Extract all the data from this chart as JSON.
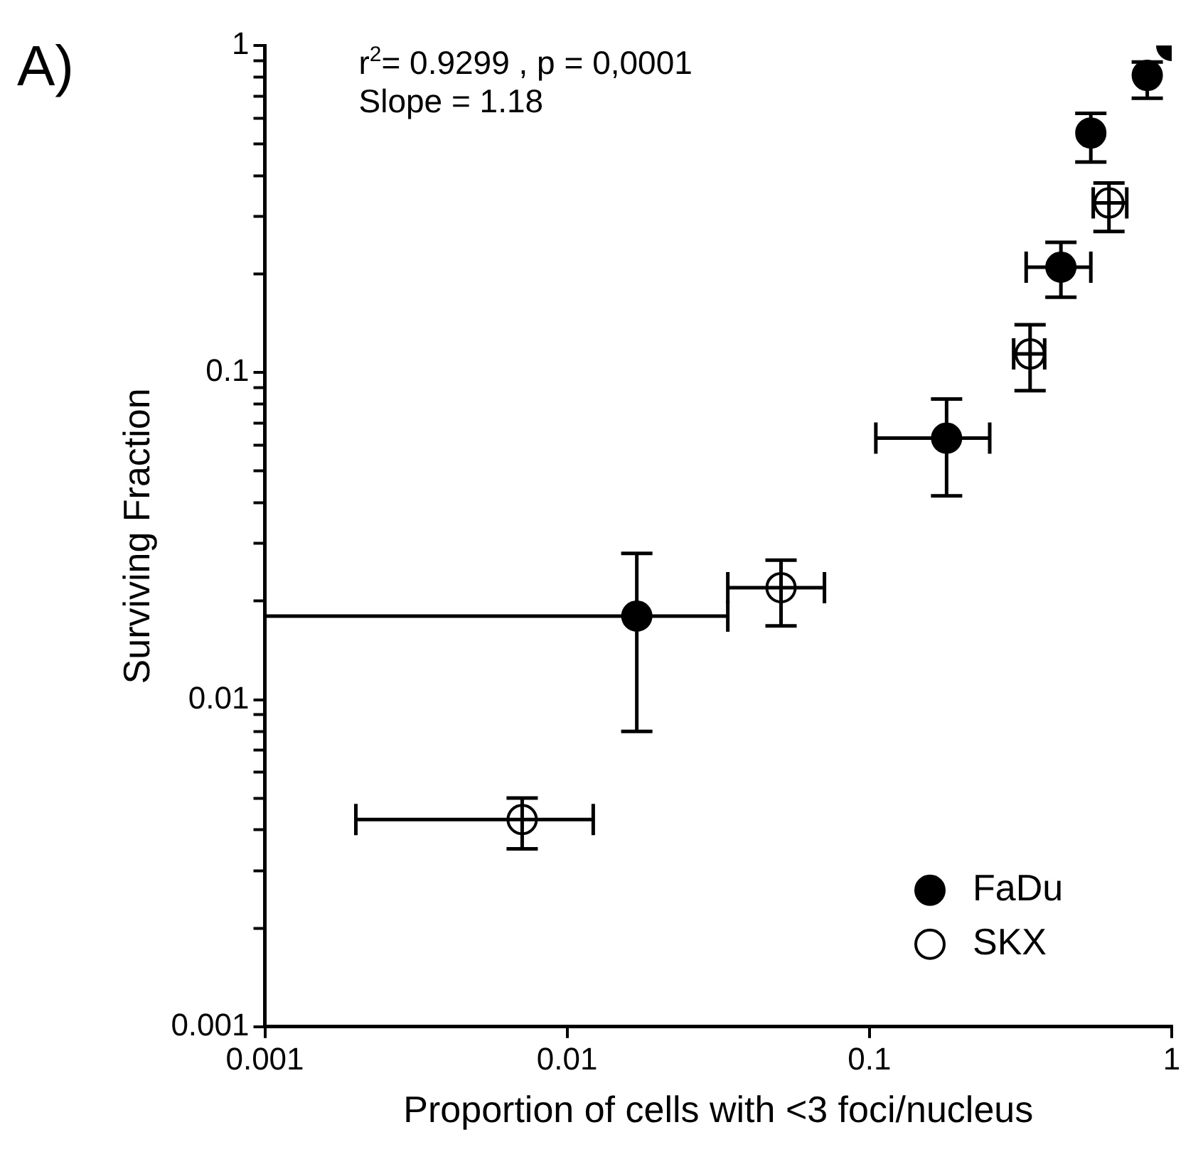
{
  "chart_data": {
    "type": "scatter",
    "title": "A)",
    "xlabel": "Proportion of cells with <3 foci/nucleus",
    "ylabel": "Surviving Fraction",
    "annotations": [
      "r$^{2}$= 0.9299 , p = 0,0001",
      "Slope = 1.18"
    ],
    "log": "xy",
    "grid": false,
    "legend": "bottom right",
    "marker": "circle",
    "xlim": [
      0.001,
      1
    ],
    "xticks": [
      0.001,
      0.01,
      0.1,
      1
    ],
    "ylim": [
      0.001,
      1
    ],
    "yticks": [
      0.001,
      {
        "value": 0.002,
        "label": null
      },
      {
        "value": 0.003,
        "label": null
      },
      {
        "value": 0.004,
        "label": null
      },
      {
        "value": 0.005,
        "label": null
      },
      {
        "value": 0.006,
        "label": null
      },
      {
        "value": 0.007,
        "label": null
      },
      {
        "value": 0.008,
        "label": null
      },
      {
        "value": 0.009,
        "label": null
      },
      0.01,
      {
        "value": 0.02,
        "label": null
      },
      {
        "value": 0.03,
        "label": null
      },
      {
        "value": 0.04,
        "label": null
      },
      {
        "value": 0.05,
        "label": null
      },
      {
        "value": 0.06,
        "label": null
      },
      {
        "value": 0.07,
        "label": null
      },
      {
        "value": 0.08,
        "label": null
      },
      {
        "value": 0.09,
        "label": null
      },
      0.1,
      {
        "value": 0.2,
        "label": null
      },
      {
        "value": 0.3,
        "label": null
      },
      {
        "value": 0.4,
        "label": null
      },
      {
        "value": 0.5,
        "label": null
      },
      {
        "value": 0.6,
        "label": null
      },
      {
        "value": 0.7,
        "label": null
      },
      {
        "value": 0.8,
        "label": null
      },
      {
        "value": 0.9,
        "label": null
      },
      1
    ],
    "series": [
      {
        "name": "FaDu",
        "color": "#000000",
        "x": [
          1,
          0.83,
          0.54,
          0.43,
          0.18,
          0.017
        ],
        "values": [
          1,
          0.81,
          0.54,
          0.21,
          0.063,
          0.018
        ],
        "errors": [
          null,
          [
            0.69,
            0.89
          ],
          [
            0.44,
            0.62
          ],
          [
            0.17,
            0.25
          ],
          [
            0.042,
            0.083
          ],
          [
            0.008,
            0.028
          ]
        ],
        "xerrors": [
          null,
          null,
          null,
          [
            0.33,
            0.54
          ],
          [
            0.105,
            0.25
          ],
          [
            0.001,
            0.034
          ]
        ]
      },
      {
        "name": "SKX",
        "color": "#ffffff",
        "x": [
          0.62,
          0.34,
          0.051,
          0.0071
        ],
        "values": [
          0.33,
          0.114,
          0.022,
          0.0043
        ],
        "errors": [
          [
            0.27,
            0.38
          ],
          [
            0.088,
            0.14
          ],
          [
            0.0168,
            0.0267
          ],
          [
            0.0035,
            0.005
          ]
        ],
        "xerrors": [
          [
            0.55,
            0.71
          ],
          [
            0.3,
            0.38
          ],
          [
            0.034,
            0.071
          ],
          [
            0.002,
            0.0122
          ]
        ]
      }
    ]
  }
}
